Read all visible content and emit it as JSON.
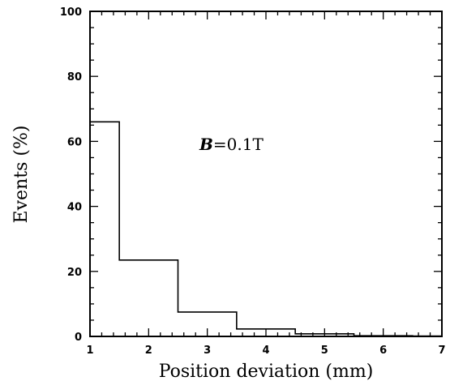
{
  "chart_data": {
    "type": "histogram",
    "xlabel": "Position deviation (mm)",
    "ylabel": "Events (%)",
    "xlim": [
      1,
      7
    ],
    "ylim": [
      0,
      100
    ],
    "x_ticks": [
      1,
      2,
      3,
      4,
      5,
      6,
      7
    ],
    "y_ticks": [
      0,
      20,
      40,
      60,
      80,
      100
    ],
    "bin_edges": [
      1,
      1.5,
      2.5,
      3.5,
      4.5,
      5.5,
      6.5,
      7
    ],
    "values": [
      66,
      23.5,
      7.5,
      2.3,
      0.8,
      0.2,
      0.1
    ],
    "annotation": {
      "variable": "B",
      "text": "=0.1T"
    },
    "grid": false
  }
}
